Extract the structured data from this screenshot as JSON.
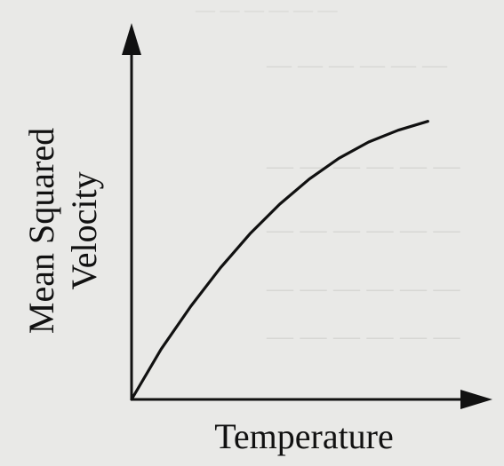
{
  "chart_data": {
    "type": "line",
    "title": "",
    "xlabel": "Temperature",
    "ylabel_lines": [
      "Mean Squared",
      "Velocity"
    ],
    "x_ticks": [],
    "y_ticks": [],
    "grid": false,
    "legend": "none",
    "series": [
      {
        "x": [
          0,
          1,
          2,
          3,
          4,
          5,
          6,
          7,
          8,
          9,
          10
        ],
        "y": [
          0,
          1.7,
          3.15,
          4.45,
          5.6,
          6.6,
          7.45,
          8.15,
          8.7,
          9.1,
          9.4
        ]
      }
    ],
    "xlim": [
      0,
      12
    ],
    "ylim": [
      0,
      12
    ]
  }
}
